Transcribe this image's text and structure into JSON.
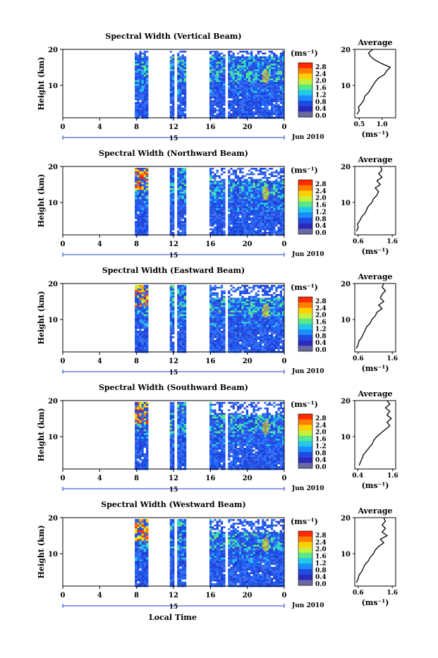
{
  "footer": {
    "xlabel": "Local Time"
  },
  "colorbar": {
    "unit_label": "(ms⁻¹)",
    "ticks": [
      "2.8",
      "2.4",
      "2.0",
      "1.6",
      "1.2",
      "0.8",
      "0.4",
      "0.0"
    ],
    "colors": [
      "#ff2a00",
      "#ff7d00",
      "#ffd000",
      "#c6f03a",
      "#58e889",
      "#22c8e8",
      "#1a8dff",
      "#1f4ce0",
      "#2a2ac0",
      "#6a6aa0"
    ]
  },
  "chart_data": [
    {
      "type": "heatmap",
      "title": "Spectral Width (Vertical Beam)",
      "ylabel": "Height (km)",
      "y_ticks": [
        "20",
        "10"
      ],
      "x_ticks": [
        "0",
        "4",
        "8",
        "12",
        "16",
        "20",
        "0"
      ],
      "date_label": "15",
      "month_label": "Jun 2010",
      "xlim": [
        0,
        24
      ],
      "ylim": [
        1,
        20
      ],
      "data_intervals": [
        [
          7.8,
          9.1
        ],
        [
          11.6,
          12.0
        ],
        [
          12.4,
          13.2
        ],
        [
          15.9,
          17.6
        ],
        [
          17.9,
          24.0
        ]
      ],
      "average_profile": {
        "title": "Average",
        "xlabel": "(ms⁻¹)",
        "x_ticks": [
          "0.5",
          "1.0"
        ],
        "y_ticks": [
          "20",
          "10"
        ],
        "xlim": [
          0.4,
          1.3
        ],
        "ylim": [
          1,
          20
        ],
        "points": [
          [
            0.45,
            2
          ],
          [
            0.5,
            3
          ],
          [
            0.48,
            4
          ],
          [
            0.55,
            5
          ],
          [
            0.6,
            6
          ],
          [
            0.62,
            7
          ],
          [
            0.7,
            8
          ],
          [
            0.75,
            9
          ],
          [
            0.8,
            10
          ],
          [
            0.85,
            11
          ],
          [
            0.92,
            12
          ],
          [
            1.05,
            13
          ],
          [
            1.1,
            14
          ],
          [
            1.18,
            15
          ],
          [
            1.0,
            16
          ],
          [
            0.85,
            17
          ],
          [
            0.75,
            18
          ],
          [
            0.7,
            19
          ],
          [
            0.8,
            20
          ]
        ]
      }
    },
    {
      "type": "heatmap",
      "title": "Spectral Width (Northward Beam)",
      "ylabel": "Height (km)",
      "y_ticks": [
        "20",
        "10"
      ],
      "x_ticks": [
        "0",
        "4",
        "8",
        "12",
        "16",
        "20",
        "0"
      ],
      "date_label": "15",
      "month_label": "Jun 2010",
      "xlim": [
        0,
        24
      ],
      "ylim": [
        1,
        20
      ],
      "data_intervals": [
        [
          7.8,
          9.1
        ],
        [
          11.6,
          12.0
        ],
        [
          12.4,
          13.2
        ],
        [
          15.9,
          17.6
        ],
        [
          17.9,
          24.0
        ]
      ],
      "average_profile": {
        "title": "Average",
        "xlabel": "(ms⁻¹)",
        "x_ticks": [
          "0.6",
          "1.6"
        ],
        "y_ticks": [
          "20",
          "10"
        ],
        "xlim": [
          0.5,
          1.7
        ],
        "ylim": [
          1,
          20
        ],
        "points": [
          [
            0.55,
            2
          ],
          [
            0.6,
            3
          ],
          [
            0.58,
            4
          ],
          [
            0.65,
            5
          ],
          [
            0.7,
            6
          ],
          [
            0.8,
            7
          ],
          [
            0.85,
            8
          ],
          [
            0.9,
            9
          ],
          [
            1.0,
            10
          ],
          [
            1.05,
            11
          ],
          [
            1.15,
            12
          ],
          [
            1.2,
            13
          ],
          [
            1.1,
            14
          ],
          [
            1.25,
            15
          ],
          [
            1.15,
            16
          ],
          [
            1.3,
            17
          ],
          [
            1.2,
            18
          ],
          [
            1.3,
            19
          ],
          [
            1.25,
            20
          ]
        ]
      }
    },
    {
      "type": "heatmap",
      "title": "Spectral Width (Eastward Beam)",
      "ylabel": "Height (km)",
      "y_ticks": [
        "20",
        "10"
      ],
      "x_ticks": [
        "0",
        "4",
        "8",
        "12",
        "16",
        "20",
        "0"
      ],
      "date_label": "15",
      "month_label": "Jun 2010",
      "xlim": [
        0,
        24
      ],
      "ylim": [
        1,
        20
      ],
      "data_intervals": [
        [
          7.8,
          9.1
        ],
        [
          11.6,
          12.0
        ],
        [
          12.4,
          13.2
        ],
        [
          15.9,
          17.6
        ],
        [
          17.9,
          24.0
        ]
      ],
      "average_profile": {
        "title": "Average",
        "xlabel": "(ms⁻¹)",
        "x_ticks": [
          "0.6",
          "1.6"
        ],
        "y_ticks": [
          "20",
          "10"
        ],
        "xlim": [
          0.5,
          1.7
        ],
        "ylim": [
          1,
          20
        ],
        "points": [
          [
            0.55,
            2
          ],
          [
            0.6,
            3
          ],
          [
            0.62,
            4
          ],
          [
            0.7,
            5
          ],
          [
            0.75,
            6
          ],
          [
            0.8,
            7
          ],
          [
            0.85,
            8
          ],
          [
            0.95,
            9
          ],
          [
            1.0,
            10
          ],
          [
            1.1,
            11
          ],
          [
            1.15,
            12
          ],
          [
            1.3,
            13
          ],
          [
            1.2,
            14
          ],
          [
            1.35,
            15
          ],
          [
            1.25,
            16
          ],
          [
            1.3,
            17
          ],
          [
            1.4,
            18
          ],
          [
            1.3,
            19
          ],
          [
            1.35,
            20
          ]
        ]
      }
    },
    {
      "type": "heatmap",
      "title": "Spectral Width (Southward Beam)",
      "ylabel": "Height (km)",
      "y_ticks": [
        "20",
        "10"
      ],
      "x_ticks": [
        "0",
        "4",
        "8",
        "12",
        "16",
        "20",
        "0"
      ],
      "date_label": "15",
      "month_label": "Jun 2010",
      "xlim": [
        0,
        24
      ],
      "ylim": [
        1,
        20
      ],
      "data_intervals": [
        [
          7.8,
          9.1
        ],
        [
          11.6,
          12.0
        ],
        [
          12.4,
          13.2
        ],
        [
          15.9,
          17.6
        ],
        [
          17.9,
          24.0
        ]
      ],
      "average_profile": {
        "title": "Average",
        "xlabel": "(ms⁻¹)",
        "x_ticks": [
          "0.4",
          "1.6"
        ],
        "y_ticks": [
          "20",
          "10"
        ],
        "xlim": [
          0.3,
          1.7
        ],
        "ylim": [
          1,
          20
        ],
        "points": [
          [
            0.45,
            2
          ],
          [
            0.5,
            3
          ],
          [
            0.55,
            4
          ],
          [
            0.6,
            5
          ],
          [
            0.7,
            6
          ],
          [
            0.8,
            7
          ],
          [
            0.9,
            8
          ],
          [
            0.95,
            9
          ],
          [
            1.05,
            10
          ],
          [
            1.2,
            11
          ],
          [
            1.35,
            12
          ],
          [
            1.5,
            13
          ],
          [
            1.4,
            14
          ],
          [
            1.55,
            15
          ],
          [
            1.4,
            16
          ],
          [
            1.5,
            17
          ],
          [
            1.35,
            18
          ],
          [
            1.5,
            19
          ],
          [
            1.4,
            20
          ]
        ]
      }
    },
    {
      "type": "heatmap",
      "title": "Spectral Width (Westward Beam)",
      "ylabel": "Height (km)",
      "y_ticks": [
        "20",
        "10"
      ],
      "x_ticks": [
        "0",
        "4",
        "8",
        "12",
        "16",
        "20",
        "0"
      ],
      "date_label": "15",
      "month_label": "Jun 2010",
      "xlim": [
        0,
        24
      ],
      "ylim": [
        1,
        20
      ],
      "data_intervals": [
        [
          7.8,
          9.1
        ],
        [
          11.6,
          12.0
        ],
        [
          12.4,
          13.2
        ],
        [
          15.9,
          17.6
        ],
        [
          17.9,
          24.0
        ]
      ],
      "average_profile": {
        "title": "Average",
        "xlabel": "(ms⁻¹)",
        "x_ticks": [
          "0.6",
          "1.6"
        ],
        "y_ticks": [
          "20",
          "10"
        ],
        "xlim": [
          0.5,
          1.7
        ],
        "ylim": [
          1,
          20
        ],
        "points": [
          [
            0.55,
            2
          ],
          [
            0.6,
            3
          ],
          [
            0.62,
            4
          ],
          [
            0.7,
            5
          ],
          [
            0.75,
            6
          ],
          [
            0.8,
            7
          ],
          [
            0.9,
            8
          ],
          [
            0.95,
            9
          ],
          [
            1.05,
            10
          ],
          [
            1.1,
            11
          ],
          [
            1.2,
            12
          ],
          [
            1.35,
            13
          ],
          [
            1.25,
            14
          ],
          [
            1.45,
            15
          ],
          [
            1.3,
            16
          ],
          [
            1.4,
            17
          ],
          [
            1.3,
            18
          ],
          [
            1.4,
            19
          ],
          [
            1.35,
            20
          ]
        ]
      }
    }
  ]
}
